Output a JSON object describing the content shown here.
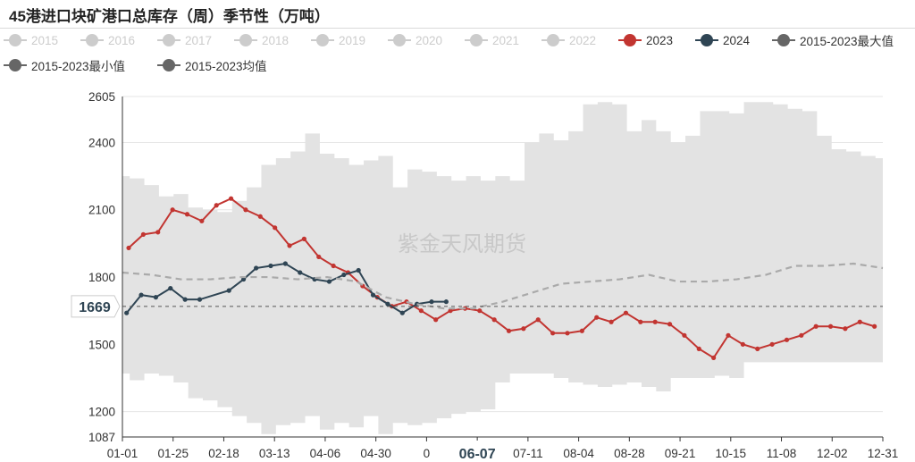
{
  "title": "45港进口块矿港口总库存（周）季节性（万吨）",
  "watermark": "紫金天风期货",
  "colors": {
    "band": "#e3e3e3",
    "y2023": "#c23531",
    "y2024": "#2f4554",
    "avg": "#aaaaaa",
    "legend_off": "#cccccc",
    "legend_max": "#666666",
    "legend_min": "#666666",
    "legend_avg": "#666666"
  },
  "legend": [
    {
      "label": "2015",
      "state": "off"
    },
    {
      "label": "2016",
      "state": "off"
    },
    {
      "label": "2017",
      "state": "off"
    },
    {
      "label": "2018",
      "state": "off"
    },
    {
      "label": "2019",
      "state": "off"
    },
    {
      "label": "2020",
      "state": "off"
    },
    {
      "label": "2021",
      "state": "off"
    },
    {
      "label": "2022",
      "state": "off"
    },
    {
      "label": "2023",
      "state": "on"
    },
    {
      "label": "2024",
      "state": "on"
    },
    {
      "label": "2015-2023最大值",
      "state": "on"
    },
    {
      "label": "2015-2023最小值",
      "state": "on"
    },
    {
      "label": "2015-2023均值",
      "state": "on"
    }
  ],
  "chart_data": {
    "type": "line",
    "title": "45港进口块矿港口总库存（周）季节性（万吨）",
    "x_tick_labels": [
      "01-01",
      "01-25",
      "02-18",
      "03-13",
      "04-06",
      "04-30",
      "0",
      "06-07",
      "07-11",
      "08-04",
      "08-28",
      "09-21",
      "10-15",
      "11-08",
      "12-02",
      "12-31"
    ],
    "y_tick_labels": [
      "1087",
      "1200",
      "1500",
      "1800",
      "2100",
      "2400",
      "2605"
    ],
    "ylim": [
      1087,
      2605
    ],
    "grid": "horizontal",
    "legend_position": "top",
    "axis_pointer": {
      "x_label": "06-07",
      "y_label": "1669",
      "y_value": 1669
    },
    "band": {
      "name": "2015-2023最大值 / 2015-2023最小值",
      "x": [
        "01-01",
        "01-08",
        "01-15",
        "01-22",
        "01-29",
        "02-05",
        "02-12",
        "02-19",
        "02-26",
        "03-05",
        "03-12",
        "03-19",
        "03-26",
        "04-02",
        "04-09",
        "04-16",
        "04-23",
        "04-30",
        "05-07",
        "05-14",
        "05-21",
        "05-28",
        "06-04",
        "06-11",
        "06-18",
        "06-25",
        "07-02",
        "07-09",
        "07-16",
        "07-23",
        "07-30",
        "08-06",
        "08-13",
        "08-20",
        "08-27",
        "09-03",
        "09-10",
        "09-17",
        "09-24",
        "10-01",
        "10-08",
        "10-15",
        "10-22",
        "10-29",
        "11-05",
        "11-12",
        "11-19",
        "11-26",
        "12-03",
        "12-10",
        "12-17",
        "12-24",
        "12-31"
      ],
      "max": [
        2250,
        2240,
        2210,
        2160,
        2170,
        2110,
        2100,
        2090,
        2140,
        2200,
        2300,
        2330,
        2360,
        2440,
        2350,
        2330,
        2300,
        2320,
        2340,
        2200,
        2280,
        2270,
        2250,
        2230,
        2250,
        2230,
        2250,
        2230,
        2400,
        2440,
        2410,
        2450,
        2570,
        2580,
        2570,
        2450,
        2500,
        2450,
        2400,
        2430,
        2540,
        2540,
        2530,
        2580,
        2580,
        2570,
        2550,
        2540,
        2430,
        2370,
        2360,
        2340,
        2330
      ],
      "min": [
        1370,
        1340,
        1370,
        1360,
        1330,
        1260,
        1250,
        1220,
        1180,
        1150,
        1100,
        1140,
        1150,
        1180,
        1120,
        1150,
        1130,
        1180,
        1100,
        1150,
        1140,
        1150,
        1170,
        1190,
        1200,
        1210,
        1330,
        1370,
        1370,
        1370,
        1350,
        1330,
        1320,
        1310,
        1320,
        1330,
        1310,
        1290,
        1350,
        1350,
        1350,
        1360,
        1350,
        1420,
        1420,
        1420,
        1420,
        1420,
        1420,
        1420,
        1420,
        1420,
        1420
      ]
    },
    "series": [
      {
        "name": "2023",
        "x": [
          "01-04",
          "01-11",
          "01-18",
          "01-25",
          "02-01",
          "02-08",
          "02-15",
          "02-22",
          "03-01",
          "03-08",
          "03-15",
          "03-22",
          "03-29",
          "04-05",
          "04-12",
          "04-19",
          "04-26",
          "05-03",
          "05-10",
          "05-17",
          "05-24",
          "05-31",
          "06-07",
          "06-14",
          "06-21",
          "06-28",
          "07-05",
          "07-12",
          "07-19",
          "07-26",
          "08-02",
          "08-09",
          "08-16",
          "08-23",
          "08-30",
          "09-06",
          "09-13",
          "09-20",
          "09-27",
          "10-04",
          "10-11",
          "10-18",
          "10-25",
          "11-01",
          "11-08",
          "11-15",
          "11-22",
          "11-29",
          "12-06",
          "12-13",
          "12-20",
          "12-27"
        ],
        "values": [
          1930,
          1990,
          2000,
          2100,
          2080,
          2050,
          2120,
          2150,
          2100,
          2070,
          2020,
          1940,
          1970,
          1890,
          1850,
          1820,
          1760,
          1710,
          1670,
          1690,
          1650,
          1610,
          1650,
          1660,
          1650,
          1610,
          1560,
          1570,
          1610,
          1550,
          1550,
          1560,
          1620,
          1600,
          1640,
          1600,
          1600,
          1590,
          1540,
          1480,
          1440,
          1540,
          1500,
          1480,
          1500,
          1520,
          1540,
          1580,
          1580,
          1570,
          1600,
          1580
        ]
      },
      {
        "name": "2024",
        "x": [
          "01-03",
          "01-10",
          "01-17",
          "01-24",
          "01-31",
          "02-07",
          "02-21",
          "02-28",
          "03-06",
          "03-13",
          "03-20",
          "03-27",
          "04-03",
          "04-10",
          "04-17",
          "04-24",
          "05-01",
          "05-08",
          "05-15",
          "05-22",
          "05-29",
          "06-05"
        ],
        "values": [
          1640,
          1720,
          1710,
          1750,
          1700,
          1700,
          1740,
          1790,
          1840,
          1850,
          1860,
          1820,
          1790,
          1780,
          1810,
          1830,
          1720,
          1680,
          1640,
          1680,
          1690,
          1690
        ]
      },
      {
        "name": "2015-2023均值",
        "x": [
          "01-01",
          "01-15",
          "01-29",
          "02-12",
          "02-26",
          "03-12",
          "03-26",
          "04-09",
          "04-23",
          "05-07",
          "05-21",
          "06-04",
          "06-18",
          "07-02",
          "07-16",
          "07-30",
          "08-13",
          "08-27",
          "09-10",
          "09-24",
          "10-08",
          "10-22",
          "11-05",
          "11-19",
          "12-03",
          "12-17",
          "12-31"
        ],
        "values": [
          1820,
          1810,
          1790,
          1790,
          1800,
          1800,
          1790,
          1800,
          1780,
          1710,
          1680,
          1660,
          1660,
          1690,
          1730,
          1770,
          1780,
          1790,
          1810,
          1780,
          1780,
          1790,
          1810,
          1850,
          1850,
          1860,
          1840
        ]
      }
    ]
  }
}
